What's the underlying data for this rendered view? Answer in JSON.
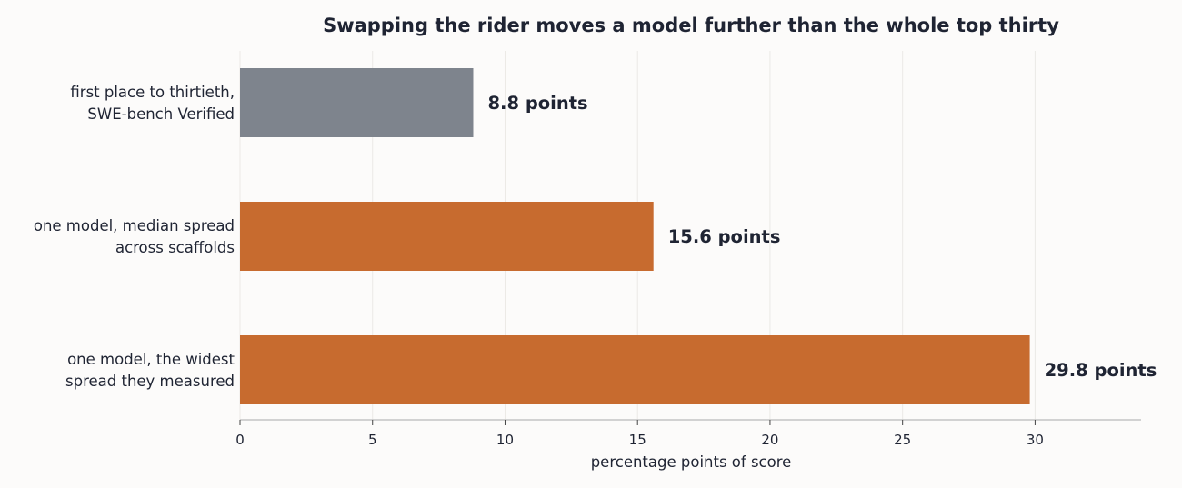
{
  "chart_data": {
    "type": "bar",
    "orientation": "horizontal",
    "title": "Swapping the rider moves a model further than the whole top thirty",
    "xlabel": "percentage points of score",
    "ylabel": "",
    "xlim": [
      0,
      34
    ],
    "xticks": [
      0,
      5,
      10,
      15,
      20,
      25,
      30
    ],
    "grid": true,
    "legend": "none",
    "categories": [
      [
        "first place to thirtieth,",
        "SWE-bench Verified"
      ],
      [
        "one model, median spread",
        "across scaffolds"
      ],
      [
        "one model, the widest",
        "spread they measured"
      ]
    ],
    "values": [
      8.8,
      15.6,
      29.8
    ],
    "value_labels": [
      "8.8 points",
      "15.6 points",
      "29.8 points"
    ],
    "colors": [
      "#7e848d",
      "#c76b2f",
      "#c76b2f"
    ]
  }
}
